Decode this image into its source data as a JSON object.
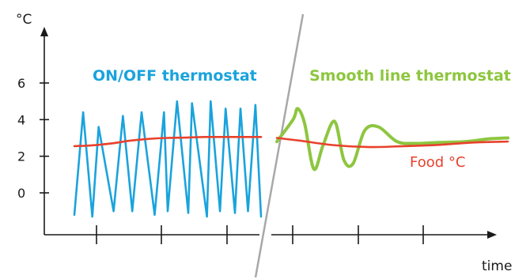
{
  "chart_data": {
    "type": "line",
    "title": "",
    "y_unit_label": "°C",
    "x_label": "time",
    "y_ticks": [
      0,
      2,
      4,
      6
    ],
    "ylim": [
      -2,
      8.5
    ],
    "grid": false,
    "panels": [
      {
        "title": "ON/OFF thermostat",
        "color": "#1aa3dc",
        "series": [
          {
            "name": "ON/OFF thermostat",
            "color": "#1aa3dc",
            "x": [
              0,
              0.047,
              0.096,
              0.13,
              0.21,
              0.26,
              0.31,
              0.36,
              0.43,
              0.48,
              0.5,
              0.55,
              0.61,
              0.63,
              0.71,
              0.73,
              0.78,
              0.81,
              0.86,
              0.89,
              0.93,
              0.97,
              1.0
            ],
            "values": [
              -1.2,
              4.4,
              -1.3,
              3.6,
              -1.0,
              4.2,
              -1.0,
              4.4,
              -1.2,
              4.4,
              -1.0,
              5.0,
              -1.1,
              4.9,
              -1.3,
              5.0,
              -1.0,
              4.6,
              -1.1,
              4.6,
              -1.0,
              4.8,
              -1.3
            ]
          },
          {
            "name": "Food °C",
            "color": "#e8412c",
            "x": [
              0,
              0.1,
              0.2,
              0.3,
              0.4,
              0.5,
              0.6,
              0.7,
              0.8,
              0.9,
              1.0
            ],
            "values": [
              2.55,
              2.6,
              2.7,
              2.85,
              2.95,
              3.0,
              3.02,
              3.05,
              3.05,
              3.05,
              3.05
            ]
          }
        ]
      },
      {
        "title": "Smooth line thermostat",
        "color": "#8dc63f",
        "series": [
          {
            "name": "Smooth line thermostat",
            "color": "#8dc63f",
            "x": [
              0,
              0.07,
              0.09,
              0.12,
              0.16,
              0.2,
              0.25,
              0.29,
              0.33,
              0.38,
              0.44,
              0.52,
              0.6,
              0.7,
              0.82,
              0.92,
              1.0
            ],
            "values": [
              2.8,
              4.0,
              4.6,
              3.8,
              1.3,
              2.6,
              3.9,
              1.8,
              1.6,
              3.4,
              3.6,
              2.8,
              2.7,
              2.75,
              2.8,
              2.95,
              3.0
            ]
          },
          {
            "name": "Food °C",
            "color": "#e8412c",
            "x": [
              0,
              0.1,
              0.25,
              0.4,
              0.55,
              0.7,
              0.85,
              1.0
            ],
            "values": [
              3.0,
              2.85,
              2.6,
              2.5,
              2.55,
              2.62,
              2.75,
              2.8
            ]
          }
        ]
      }
    ],
    "annotations": [
      "Food °C"
    ]
  },
  "colors": {
    "axis": "#1a1a1a",
    "divider": "#a8a8a8"
  }
}
